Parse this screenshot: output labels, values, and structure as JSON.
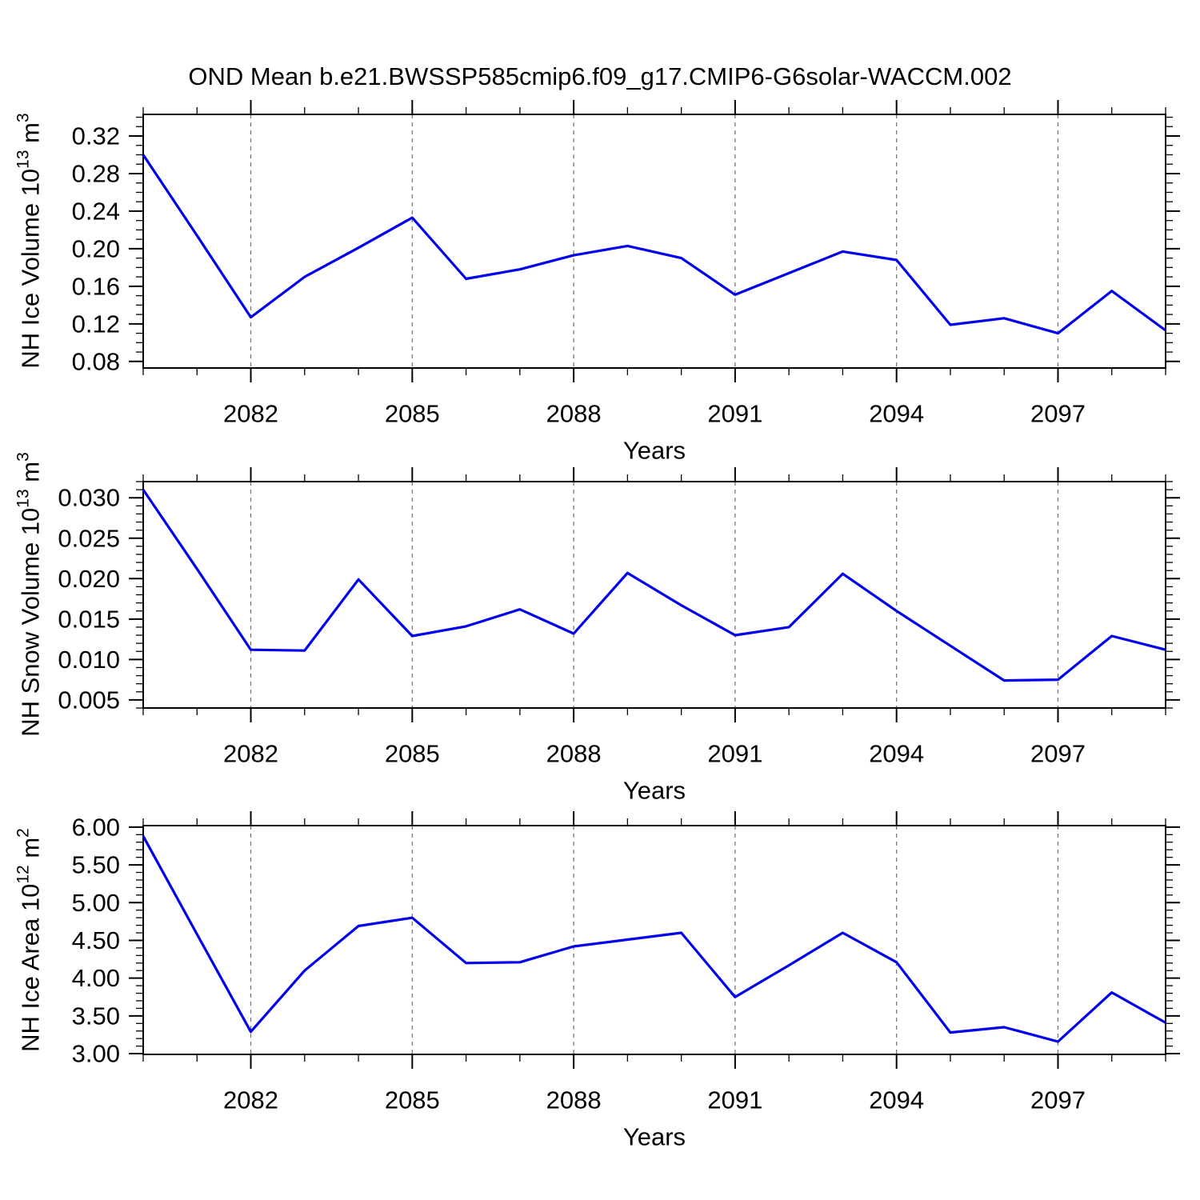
{
  "title": "OND Mean b.e21.BWSSP585cmip6.f09_g17.CMIP6-G6solar-WACCM.002",
  "x_axis_label": "Years",
  "line_color": "#0000ee",
  "grid_color": "#6e6e6e",
  "axis_color": "#000000",
  "chart_data": [
    {
      "type": "line",
      "name": "nh-ice-volume",
      "ylabel_parts": {
        "prefix": "NH Ice Volume 10",
        "sup1": "13",
        "mid": " m",
        "sup2": "3"
      },
      "xlabel": "Years",
      "x": [
        2080,
        2081,
        2082,
        2083,
        2084,
        2085,
        2086,
        2087,
        2088,
        2089,
        2090,
        2091,
        2092,
        2093,
        2094,
        2095,
        2096,
        2097,
        2098,
        2099
      ],
      "values": [
        0.3,
        0.214,
        0.127,
        0.17,
        0.201,
        0.233,
        0.168,
        0.178,
        0.193,
        0.203,
        0.19,
        0.151,
        0.174,
        0.197,
        0.188,
        0.119,
        0.126,
        0.11,
        0.155,
        0.113
      ],
      "ylim": [
        0.073,
        0.343
      ],
      "y_major_ticks": [
        0.08,
        0.12,
        0.16,
        0.2,
        0.24,
        0.28,
        0.32
      ],
      "y_major_labels": [
        "0.08",
        "0.12",
        "0.16",
        "0.20",
        "0.24",
        "0.28",
        "0.32"
      ],
      "y_minor_step": 0.01,
      "x_major_ticks": [
        2082,
        2085,
        2088,
        2091,
        2094,
        2097
      ],
      "x_major_labels": [
        "2082",
        "2085",
        "2088",
        "2091",
        "2094",
        "2097"
      ],
      "x_minor_step": 1,
      "grid": "vertical-dashed"
    },
    {
      "type": "line",
      "name": "nh-snow-volume",
      "ylabel_parts": {
        "prefix": "NH Snow Volume 10",
        "sup1": "13",
        "mid": " m",
        "sup2": "3"
      },
      "xlabel": "Years",
      "x": [
        2080,
        2081,
        2082,
        2083,
        2084,
        2085,
        2086,
        2087,
        2088,
        2089,
        2090,
        2091,
        2092,
        2093,
        2094,
        2095,
        2096,
        2097,
        2098,
        2099
      ],
      "values": [
        0.031,
        0.0212,
        0.0112,
        0.0111,
        0.0199,
        0.0129,
        0.0141,
        0.0162,
        0.0132,
        0.0207,
        0.0167,
        0.013,
        0.014,
        0.0206,
        0.016,
        0.0117,
        0.0074,
        0.0075,
        0.0129,
        0.0112
      ],
      "ylim": [
        0.004,
        0.032
      ],
      "y_major_ticks": [
        0.005,
        0.01,
        0.015,
        0.02,
        0.025,
        0.03
      ],
      "y_major_labels": [
        "0.005",
        "0.010",
        "0.015",
        "0.020",
        "0.025",
        "0.030"
      ],
      "y_minor_step": 0.001,
      "x_major_ticks": [
        2082,
        2085,
        2088,
        2091,
        2094,
        2097
      ],
      "x_major_labels": [
        "2082",
        "2085",
        "2088",
        "2091",
        "2094",
        "2097"
      ],
      "x_minor_step": 1,
      "grid": "vertical-dashed"
    },
    {
      "type": "line",
      "name": "nh-ice-area",
      "ylabel_parts": {
        "prefix": "NH Ice Area 10",
        "sup1": "12",
        "mid": " m",
        "sup2": "2"
      },
      "xlabel": "Years",
      "x": [
        2080,
        2081,
        2082,
        2083,
        2084,
        2085,
        2086,
        2087,
        2088,
        2089,
        2090,
        2091,
        2092,
        2093,
        2094,
        2095,
        2096,
        2097,
        2098,
        2099
      ],
      "values": [
        5.88,
        4.58,
        3.29,
        4.1,
        4.69,
        4.8,
        4.2,
        4.21,
        4.42,
        4.51,
        4.6,
        3.75,
        4.17,
        4.6,
        4.21,
        3.28,
        3.35,
        3.16,
        3.81,
        3.41
      ],
      "ylim": [
        2.99,
        6.02
      ],
      "y_major_ticks": [
        3.0,
        3.5,
        4.0,
        4.5,
        5.0,
        5.5,
        6.0
      ],
      "y_major_labels": [
        "3.00",
        "3.50",
        "4.00",
        "4.50",
        "5.00",
        "5.50",
        "6.00"
      ],
      "y_minor_step": 0.1,
      "x_major_ticks": [
        2082,
        2085,
        2088,
        2091,
        2094,
        2097
      ],
      "x_major_labels": [
        "2082",
        "2085",
        "2088",
        "2091",
        "2094",
        "2097"
      ],
      "x_minor_step": 1,
      "grid": "vertical-dashed"
    }
  ]
}
